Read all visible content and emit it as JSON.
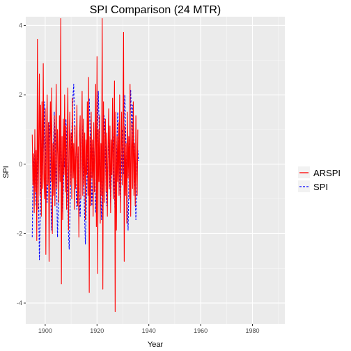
{
  "chart_data": {
    "type": "line",
    "title": "SPI Comparison (24 MTR)",
    "xlabel": "Year",
    "ylabel": "SPI",
    "xlim": [
      1892.5,
      1992.5
    ],
    "ylim": [
      -4.6,
      4.25
    ],
    "x_ticks": [
      1900,
      1920,
      1940,
      1960,
      1980
    ],
    "x_tick_labels": [
      "1900",
      "1920",
      "1940",
      "1960",
      "1980"
    ],
    "y_ticks": [
      -4,
      -2,
      0,
      2,
      4
    ],
    "y_tick_labels": [
      "-4",
      "-2",
      "0",
      "2",
      "4"
    ],
    "grid": true,
    "background": "#ebebeb",
    "legend_position": "right",
    "x_start": 1895,
    "x_step": 0.25,
    "series": [
      {
        "name": "ARSPI",
        "color": "#ff0000",
        "dash": "solid",
        "values": [
          0.85,
          -0.6,
          0.3,
          -1.4,
          1.0,
          -0.8,
          0.4,
          -2.2,
          3.6,
          -1.3,
          0.6,
          2.6,
          -0.9,
          1.7,
          -1.5,
          1.8,
          -0.7,
          2.9,
          -0.4,
          -1.0,
          1.6,
          -2.6,
          0.9,
          2.0,
          -0.6,
          1.2,
          -2.8,
          0.7,
          1.8,
          -0.5,
          2.2,
          -2.0,
          0.6,
          -0.9,
          1.4,
          -1.2,
          0.3,
          2.3,
          -0.7,
          1.0,
          0.3,
          -1.1,
          1.4,
          -0.5,
          4.2,
          -3.45,
          0.8,
          -1.6,
          1.3,
          -0.3,
          2.0,
          -0.8,
          1.1,
          -1.3,
          0.7,
          2.2,
          -1.9,
          0.4,
          1.5,
          -0.6,
          0.9,
          -1.0,
          1.9,
          -0.4,
          0.6,
          -1.3,
          1.1,
          -0.7,
          0.4,
          1.7,
          -1.2,
          0.5,
          -2.1,
          0.8,
          1.4,
          -1.0,
          0.2,
          2.1,
          -0.9,
          1.3,
          -0.6,
          0.9,
          -1.6,
          0.7,
          -0.3,
          1.8,
          -0.9,
          2.5,
          -3.7,
          0.8,
          -1.2,
          1.5,
          -0.4,
          0.7,
          -1.5,
          1.2,
          -0.8,
          0.5,
          2.3,
          -1.8,
          3.1,
          -3.15,
          1.0,
          -0.5,
          1.4,
          -1.7,
          0.6,
          -0.9,
          4.2,
          -3.6,
          1.8,
          -1.1,
          0.6,
          1.3,
          -0.8,
          0.9,
          -1.5,
          0.4,
          1.6,
          -0.7,
          1.1,
          -1.4,
          0.7,
          -0.3,
          1.9,
          -1.0,
          0.5,
          2.4,
          -4.25,
          1.5,
          -1.9,
          0.8,
          -0.5,
          1.2,
          -0.9,
          2.0,
          -1.4,
          0.3,
          1.5,
          -0.6,
          1.0,
          3.8,
          -2.8,
          1.1,
          -0.9,
          0.6,
          -1.7,
          1.5,
          -0.4,
          0.8,
          -1.0,
          2.3,
          -1.5,
          0.4,
          1.2,
          -0.7,
          1.8,
          -0.9,
          0.6,
          -1.2,
          1.4,
          -0.3,
          -0.9,
          1.0
        ]
      },
      {
        "name": "SPI",
        "color": "#0000ff",
        "dash": "dashed",
        "values": [
          -2.1,
          -0.5,
          0.2,
          -0.3,
          0.5,
          -0.8,
          -1.2,
          -0.5,
          0.3,
          -0.9,
          -1.3,
          -2.75,
          -1.8,
          -0.7,
          0.2,
          0.9,
          -0.3,
          1.1,
          0.4,
          1.8,
          1.1,
          0.2,
          -0.6,
          -1.1,
          -0.5,
          0.3,
          1.2,
          0.6,
          -0.4,
          -1.2,
          -1.9,
          -0.8,
          0.1,
          0.7,
          1.5,
          0.9,
          0.2,
          -0.5,
          -1.0,
          -2.1,
          -1.4,
          -0.6,
          0.4,
          1.1,
          0.6,
          -0.2,
          -0.9,
          -1.4,
          -0.7,
          0.3,
          -0.1,
          0.5,
          1.3,
          0.8,
          -0.3,
          -1.2,
          -2.0,
          -2.45,
          -1.6,
          -0.7,
          0.2,
          0.9,
          1.5,
          2.0,
          2.3,
          1.4,
          0.6,
          -0.2,
          -0.9,
          -1.3,
          -0.6,
          0.3,
          -0.4,
          -1.1,
          -1.5,
          -0.8,
          0.4,
          1.2,
          0.7,
          -0.1,
          -0.8,
          -1.6,
          -2.3,
          -1.6,
          -0.8,
          0.0,
          0.9,
          1.5,
          1.9,
          1.2,
          0.4,
          -0.5,
          -1.2,
          -0.7,
          0.1,
          0.8,
          -0.2,
          -0.9,
          -1.4,
          -0.6,
          0.3,
          1.2,
          2.1,
          1.3,
          0.5,
          -0.3,
          -1.0,
          -1.6,
          -0.9,
          -0.2,
          0.6,
          1.4,
          0.9,
          0.1,
          -0.6,
          -1.2,
          -0.7,
          0.2,
          1.0,
          0.4,
          -0.4,
          -1.1,
          -0.5,
          0.3,
          1.1,
          0.6,
          -0.2,
          -0.9,
          -1.5,
          -0.8,
          0.1,
          0.8,
          1.5,
          1.0,
          0.3,
          -0.4,
          -1.1,
          -0.6,
          0.2,
          1.0,
          0.5,
          -0.3,
          1.6,
          2.0,
          1.1,
          0.3,
          -0.5,
          -1.3,
          -1.9,
          -0.9,
          0.2,
          1.1,
          2.15,
          1.4,
          0.5,
          1.7,
          1.2,
          0.6,
          -0.2,
          -0.9,
          -1.6,
          -0.8,
          -0.2,
          0.4,
          0.1
        ]
      }
    ]
  }
}
